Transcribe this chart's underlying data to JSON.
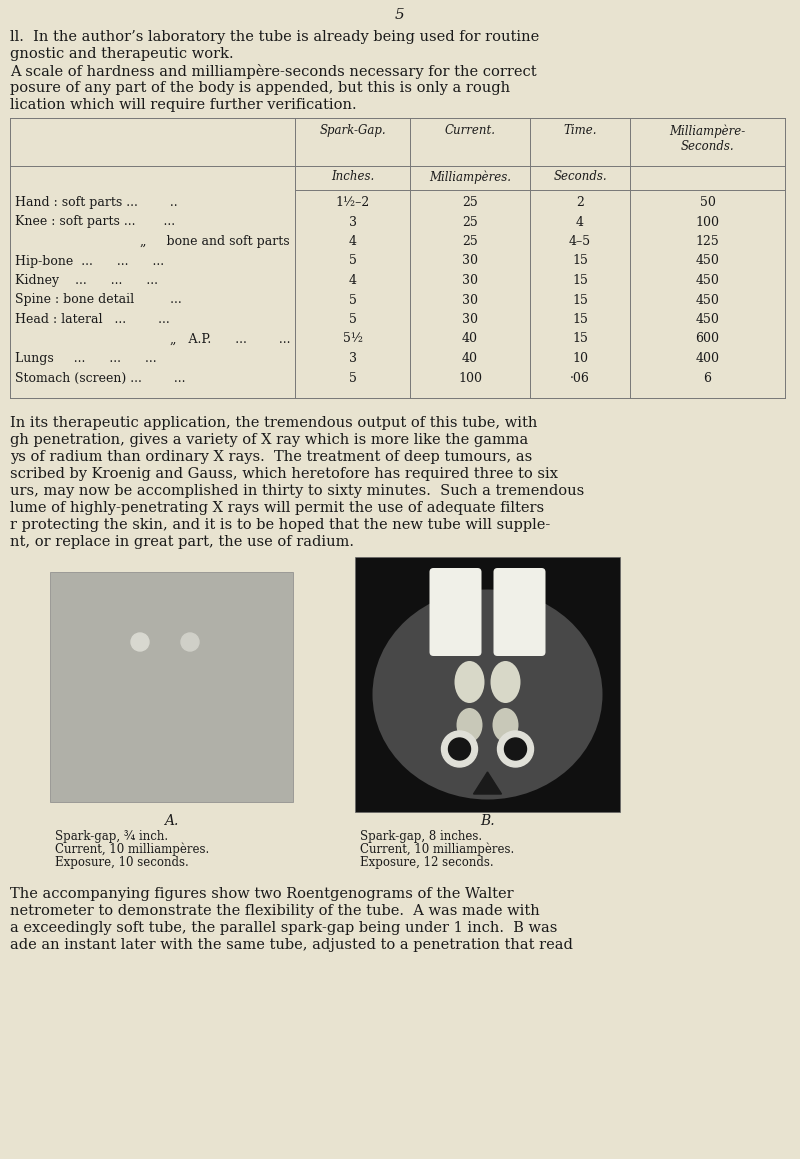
{
  "page_number": "5",
  "bg_color": "#e8e3d0",
  "text_color": "#1a1a1a",
  "para1_line1": "ll.  In the author’s laboratory the tube is already being used for routine",
  "para1_line2": "gnostic and therapeutic work.",
  "para2_line1": "A scale of hardness and milliampère-seconds necessary for the correct",
  "para2_line2": "posure of any part of the body is appended, but this is only a rough",
  "para2_line3": "lication which will require further verification.",
  "table_col_headers": [
    "Spark-Gap.",
    "Current.",
    "Time.",
    "Milliampère-\nSeconds."
  ],
  "table_subheaders": [
    "Inches.",
    "Milliampères.",
    "Seconds."
  ],
  "table_rows": [
    [
      "Hand : soft parts ...        ..",
      "1½–2",
      "25",
      "2",
      "50"
    ],
    [
      "Knee : soft parts ...       ...",
      "3",
      "25",
      "4",
      "100"
    ],
    [
      "„     bone and soft parts",
      "4",
      "25",
      "4–5",
      "125"
    ],
    [
      "Hip-bone  ...      ...      ...",
      "5",
      "30",
      "15",
      "450"
    ],
    [
      "Kidney    ...      ...      ...",
      "4",
      "30",
      "15",
      "450"
    ],
    [
      "Spine : bone detail         ...",
      "5",
      "30",
      "15",
      "450"
    ],
    [
      "Head : lateral   ...        ...",
      "5",
      "30",
      "15",
      "450"
    ],
    [
      "„   A.P.      ...        ...",
      "5½",
      "40",
      "15",
      "600"
    ],
    [
      "Lungs     ...      ...      ...",
      "3",
      "40",
      "10",
      "400"
    ],
    [
      "Stomach (screen) ...        ...",
      "5",
      "100",
      "·06",
      "6"
    ]
  ],
  "para3_lines": [
    "In its therapeutic application, the tremendous output of this tube, with",
    "gh penetration, gives a variety of X ray which is more like the gamma",
    "ys of radium than ordinary X rays.  The treatment of deep tumours, as",
    "scribed by Kroenig and Gauss, which heretofore has required three to six",
    "urs, may now be accomplished in thirty to sixty minutes.  Such a tremendous",
    "lume of highly-penetrating X rays will permit the use of adequate filters",
    "r protecting the skin, and it is to be hoped that the new tube will supple-",
    "nt, or replace in great part, the use of radium."
  ],
  "caption_A": "A.",
  "caption_B": "B.",
  "caption_A_lines": [
    "Spark-gap, ¾ inch.",
    "Current, 10 milliampères.",
    "Exposure, 10 seconds."
  ],
  "caption_B_lines": [
    "Spark-gap, 8 inches.",
    "Current, 10 milliampères.",
    "Exposure, 12 seconds."
  ],
  "para4_lines": [
    "The accompanying figures show two Roentgenograms of the Walter",
    "netrometer to demonstrate the flexibility of the tube.  A was made with",
    "a exceedingly soft tube, the parallel spark-gap being under 1 inch.  B was",
    "ade an instant later with the same tube, adjusted to a penetration that read"
  ]
}
